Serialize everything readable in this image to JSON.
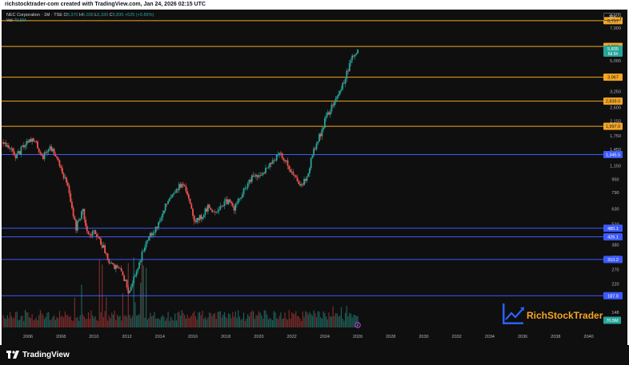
{
  "header": {
    "caption": "richstocktrader-com created with TradingView.com, Jan 24, 2026 02:15 UTC"
  },
  "legend": {
    "symbol": "NEC Corporation · 1M · TSE",
    "open_label": "O",
    "open": "5,370",
    "high_label": "H",
    "high": "6,036",
    "low_label": "L",
    "low": "5,330",
    "close_label": "C",
    "close": "5,835",
    "change": "+525 (+9.89%)",
    "volume_label": "Vol",
    "volume": "70.5M"
  },
  "currency": "JPY",
  "footer": {
    "brand": "TradingView"
  },
  "watermark": {
    "text": "RichStockTrader"
  },
  "chart_data": {
    "type": "candlestick",
    "x_ticks": [
      "2006",
      "2008",
      "2010",
      "2012",
      "2014",
      "2016",
      "2018",
      "2020",
      "2022",
      "2024",
      "2026",
      "2028",
      "2030",
      "2032",
      "2034",
      "2036",
      "2038",
      "2040"
    ],
    "x_range": [
      2004.4,
      2040.8
    ],
    "y_scale": "log",
    "y_range": [
      120,
      10200
    ],
    "y_ticks": [
      "9,500",
      "7,900",
      "5,000",
      "3,250",
      "2,600",
      "2,150",
      "1,750",
      "1,450",
      "1,150",
      "950",
      "790",
      "630",
      "510",
      "380",
      "320",
      "270",
      "220",
      "148"
    ],
    "horizontal_levels": [
      {
        "value": 8737,
        "label": "8,737",
        "color": "#f5a623"
      },
      {
        "value": 6093,
        "label": "6,093",
        "color": "#f5a623"
      },
      {
        "value": 3967,
        "label": "3,967",
        "color": "#f5a623"
      },
      {
        "value": 2839,
        "label": "2,839.0",
        "color": "#f5a623"
      },
      {
        "value": 1997,
        "label": "1,997.0",
        "color": "#f5a623"
      },
      {
        "value": 1345.5,
        "label": "1,345.5",
        "color": "#3d5afe"
      },
      {
        "value": 480.1,
        "label": "480.1",
        "color": "#3d5afe"
      },
      {
        "value": 426.1,
        "label": "426.1",
        "color": "#3d5afe"
      },
      {
        "value": 310.2,
        "label": "310.2",
        "color": "#3d5afe"
      },
      {
        "value": 187.0,
        "label": "187.0",
        "color": "#3d5afe"
      }
    ],
    "last_price": {
      "value": 5835,
      "label": "5,835",
      "countdown": "6d 5h"
    },
    "volume_label": "70.5M",
    "path": [
      [
        2004.5,
        1600
      ],
      [
        2004.9,
        1450
      ],
      [
        2005.3,
        1300
      ],
      [
        2005.7,
        1500
      ],
      [
        2006.1,
        1700
      ],
      [
        2006.5,
        1550
      ],
      [
        2006.9,
        1300
      ],
      [
        2007.3,
        1500
      ],
      [
        2007.7,
        1350
      ],
      [
        2008.1,
        1050
      ],
      [
        2008.5,
        800
      ],
      [
        2008.9,
        480
      ],
      [
        2009.3,
        620
      ],
      [
        2009.7,
        430
      ],
      [
        2010.1,
        460
      ],
      [
        2010.5,
        380
      ],
      [
        2010.9,
        310
      ],
      [
        2011.3,
        280
      ],
      [
        2011.7,
        260
      ],
      [
        2012.1,
        200
      ],
      [
        2012.5,
        250
      ],
      [
        2012.9,
        330
      ],
      [
        2013.3,
        440
      ],
      [
        2013.7,
        470
      ],
      [
        2014.1,
        560
      ],
      [
        2014.5,
        720
      ],
      [
        2014.9,
        820
      ],
      [
        2015.3,
        880
      ],
      [
        2015.7,
        780
      ],
      [
        2016.1,
        540
      ],
      [
        2016.5,
        560
      ],
      [
        2016.9,
        640
      ],
      [
        2017.3,
        610
      ],
      [
        2017.7,
        660
      ],
      [
        2018.1,
        700
      ],
      [
        2018.5,
        640
      ],
      [
        2018.9,
        740
      ],
      [
        2019.3,
        880
      ],
      [
        2019.7,
        1000
      ],
      [
        2020.1,
        980
      ],
      [
        2020.5,
        1150
      ],
      [
        2020.9,
        1250
      ],
      [
        2021.3,
        1350
      ],
      [
        2021.7,
        1200
      ],
      [
        2022.1,
        1000
      ],
      [
        2022.5,
        900
      ],
      [
        2022.9,
        950
      ],
      [
        2023.3,
        1400
      ],
      [
        2023.7,
        1750
      ],
      [
        2024.1,
        2300
      ],
      [
        2024.5,
        2700
      ],
      [
        2024.9,
        3200
      ],
      [
        2025.3,
        4100
      ],
      [
        2025.7,
        5300
      ],
      [
        2026.0,
        5835
      ]
    ]
  }
}
